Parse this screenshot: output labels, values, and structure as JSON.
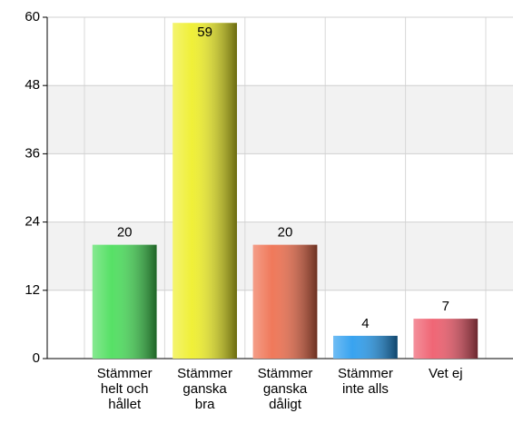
{
  "chart_data": {
    "type": "bar",
    "categories": [
      "Stämmer helt och hållet",
      "Stämmer ganska bra",
      "Stämmer ganska dåligt",
      "Stämmer inte alls",
      "Vet ej"
    ],
    "values": [
      20,
      59,
      20,
      4,
      7
    ],
    "colors": [
      "#44dd55",
      "#eeee22",
      "#ee6a48",
      "#2299ee",
      "#ee5566"
    ],
    "ylim": [
      0,
      60
    ],
    "yticks": [
      0,
      12,
      24,
      36,
      48,
      60
    ],
    "grid": true
  }
}
